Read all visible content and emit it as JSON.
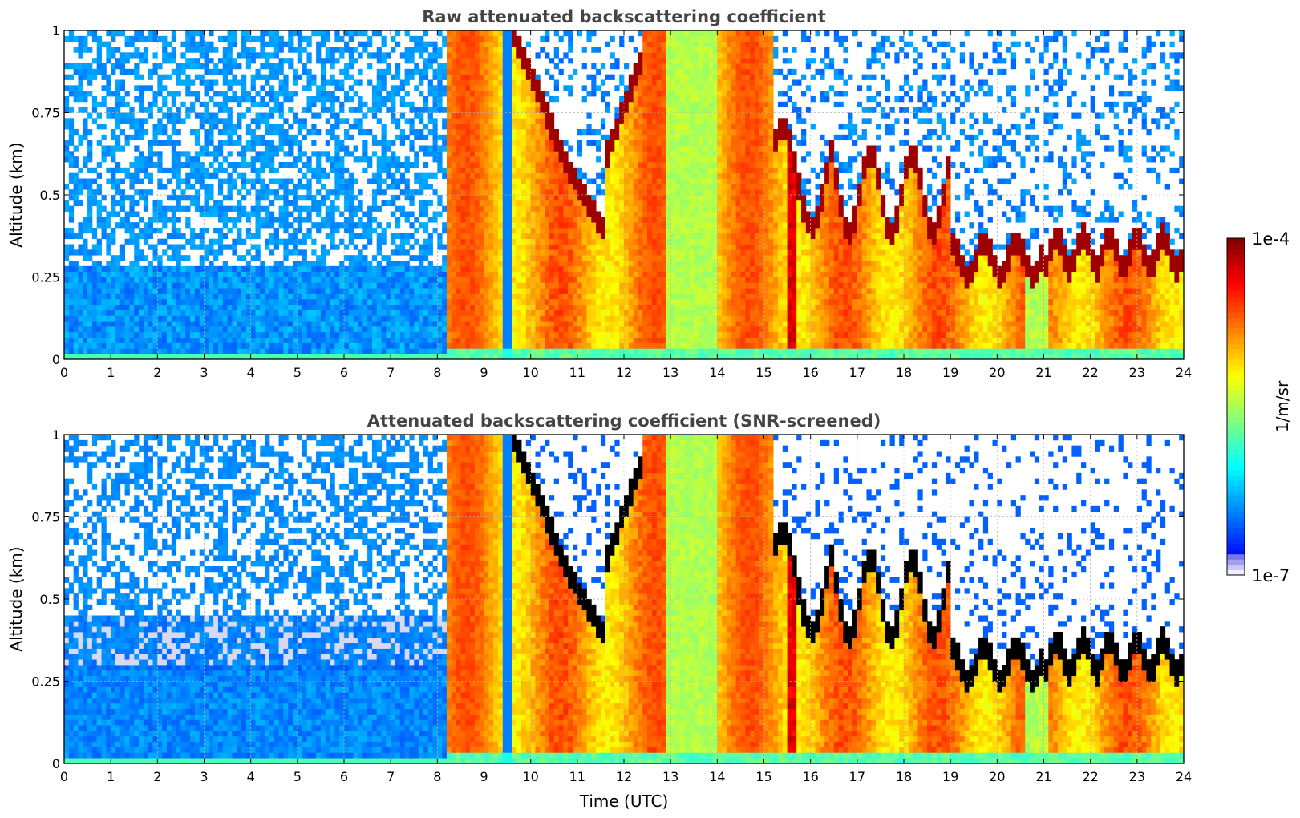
{
  "chart_data": [
    {
      "type": "heatmap",
      "title": "Raw attenuated backscattering coefficient",
      "xlabel": "",
      "ylabel": "Altitude (km)",
      "xlim": [
        0,
        24
      ],
      "ylim": [
        0,
        1
      ],
      "xticks": [
        "0",
        "1",
        "2",
        "3",
        "4",
        "5",
        "6",
        "7",
        "8",
        "9",
        "10",
        "11",
        "12",
        "13",
        "14",
        "15",
        "16",
        "17",
        "18",
        "19",
        "20",
        "21",
        "22",
        "23",
        "24"
      ],
      "yticks": [
        "0",
        "0.25",
        "0.5",
        "0.75",
        "1"
      ],
      "grid": true,
      "screened": false
    },
    {
      "type": "heatmap",
      "title": "Attenuated backscattering coefficient (SNR-screened)",
      "xlabel": "Time (UTC)",
      "ylabel": "Altitude (km)",
      "xlim": [
        0,
        24
      ],
      "ylim": [
        0,
        1
      ],
      "xticks": [
        "0",
        "1",
        "2",
        "3",
        "4",
        "5",
        "6",
        "7",
        "8",
        "9",
        "10",
        "11",
        "12",
        "13",
        "14",
        "15",
        "16",
        "17",
        "18",
        "19",
        "20",
        "21",
        "22",
        "23",
        "24"
      ],
      "yticks": [
        "0",
        "0.25",
        "0.5",
        "0.75",
        "1"
      ],
      "grid": true,
      "screened": true
    }
  ],
  "colorbar": {
    "label": "1/m/sr",
    "max_label": "1e-4",
    "min_label": "1e-7",
    "scale": "log",
    "colormap": "jet"
  },
  "colors": {
    "title": "#444444",
    "grid": "#b0b0b0",
    "axis": "#000000"
  }
}
